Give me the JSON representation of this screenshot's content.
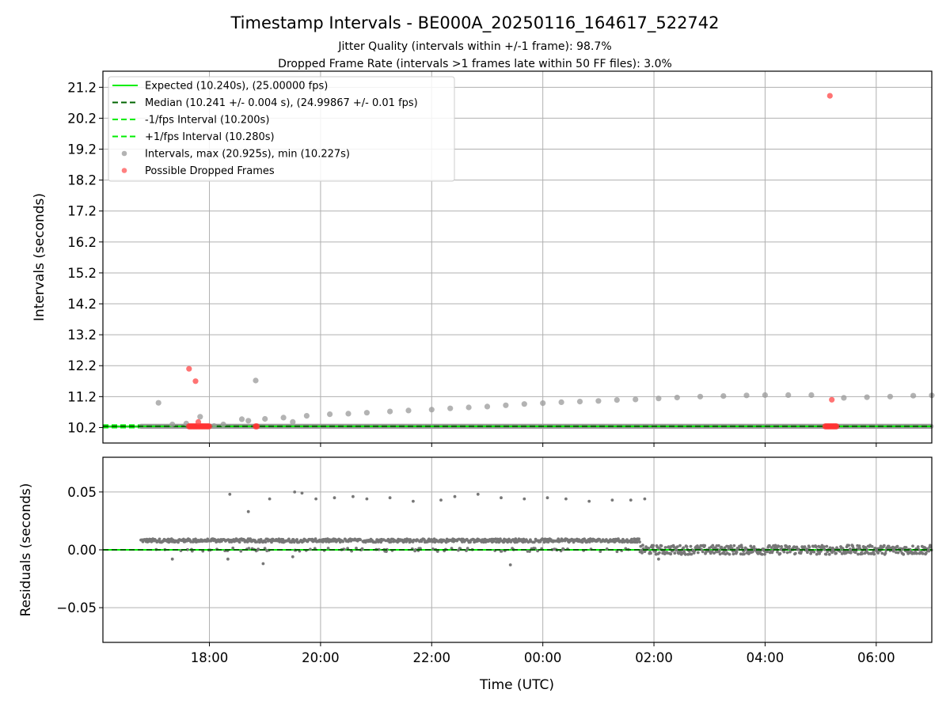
{
  "chart_data": [
    {
      "type": "scatter",
      "panel": "intervals",
      "title": "Timestamp Intervals - BE000A_20250116_164617_522742",
      "subtitle_lines": [
        "Jitter Quality (intervals within +/-1 frame): 98.7%",
        "Dropped Frame Rate (intervals >1 frames late within 50 FF files): 3.0%"
      ],
      "xlabel": "",
      "ylabel": "Intervals (seconds)",
      "xlim": [
        "16:05",
        "07:00"
      ],
      "ylim": [
        9.7,
        21.72
      ],
      "yticks": [
        "10.2",
        "11.2",
        "12.2",
        "13.2",
        "14.2",
        "15.2",
        "16.2",
        "17.2",
        "18.2",
        "19.2",
        "20.2",
        "21.2"
      ],
      "grid": true,
      "legend": {
        "placement": "upper-left",
        "entries": [
          {
            "label": "Expected (10.240s), (25.00000 fps)",
            "style": "solid-line",
            "color": "#00ee00"
          },
          {
            "label": "Median (10.241 +/- 0.004 s), (24.99867 +/- 0.01 fps)",
            "style": "dashed-line",
            "color": "#006400"
          },
          {
            "label": "-1/fps Interval (10.200s)",
            "style": "dashed-line",
            "color": "#00ee00"
          },
          {
            "label": "+1/fps Interval (10.280s)",
            "style": "dashed-line",
            "color": "#00ee00"
          },
          {
            "label": "Intervals, max (20.925s), min (10.227s)",
            "style": "marker",
            "color": "#999999"
          },
          {
            "label": "Possible Dropped Frames",
            "style": "marker",
            "color": "#ff5555"
          }
        ]
      },
      "reference_lines": {
        "expected": 10.24,
        "median": 10.241,
        "minus_one_fps": 10.2,
        "plus_one_fps": 10.28
      },
      "baseline_band": {
        "start": "16:46",
        "end": "07:00",
        "value": 10.24
      },
      "intervals_outliers": [
        {
          "x": "17:05",
          "y": 11.0
        },
        {
          "x": "17:20",
          "y": 10.3
        },
        {
          "x": "17:35",
          "y": 10.33
        },
        {
          "x": "17:50",
          "y": 10.55
        },
        {
          "x": "18:05",
          "y": 10.25
        },
        {
          "x": "18:15",
          "y": 10.3
        },
        {
          "x": "18:35",
          "y": 10.47
        },
        {
          "x": "18:42",
          "y": 10.42
        },
        {
          "x": "18:50",
          "y": 11.72
        },
        {
          "x": "19:00",
          "y": 10.48
        },
        {
          "x": "19:20",
          "y": 10.52
        },
        {
          "x": "19:30",
          "y": 10.38
        },
        {
          "x": "19:45",
          "y": 10.58
        },
        {
          "x": "20:10",
          "y": 10.63
        },
        {
          "x": "20:30",
          "y": 10.65
        },
        {
          "x": "20:50",
          "y": 10.68
        },
        {
          "x": "21:15",
          "y": 10.72
        },
        {
          "x": "21:35",
          "y": 10.75
        },
        {
          "x": "22:00",
          "y": 10.78
        },
        {
          "x": "22:20",
          "y": 10.82
        },
        {
          "x": "22:40",
          "y": 10.85
        },
        {
          "x": "23:00",
          "y": 10.88
        },
        {
          "x": "23:20",
          "y": 10.92
        },
        {
          "x": "23:40",
          "y": 10.96
        },
        {
          "x": "00:00",
          "y": 10.99
        },
        {
          "x": "00:20",
          "y": 11.02
        },
        {
          "x": "00:40",
          "y": 11.04
        },
        {
          "x": "01:00",
          "y": 11.06
        },
        {
          "x": "01:20",
          "y": 11.09
        },
        {
          "x": "01:40",
          "y": 11.11
        },
        {
          "x": "02:05",
          "y": 11.14
        },
        {
          "x": "02:25",
          "y": 11.17
        },
        {
          "x": "02:50",
          "y": 11.2
        },
        {
          "x": "03:15",
          "y": 11.22
        },
        {
          "x": "03:40",
          "y": 11.24
        },
        {
          "x": "04:00",
          "y": 11.25
        },
        {
          "x": "04:25",
          "y": 11.25
        },
        {
          "x": "04:50",
          "y": 11.25
        },
        {
          "x": "05:25",
          "y": 11.16
        },
        {
          "x": "05:50",
          "y": 11.18
        },
        {
          "x": "06:15",
          "y": 11.2
        },
        {
          "x": "06:40",
          "y": 11.23
        },
        {
          "x": "07:00",
          "y": 11.24
        }
      ],
      "dropped_frames": [
        {
          "x": "17:38",
          "y": 12.1
        },
        {
          "x": "17:45",
          "y": 11.7
        },
        {
          "x": "17:48",
          "y": 10.38
        },
        {
          "x": "05:10",
          "y": 20.925
        },
        {
          "x": "05:12",
          "y": 11.1
        }
      ],
      "dropped_frame_clusters": [
        {
          "start": "17:38",
          "end": "18:00",
          "y": 10.24
        },
        {
          "start": "18:50",
          "end": "18:52",
          "y": 10.24
        },
        {
          "start": "05:05",
          "end": "05:18",
          "y": 10.24
        }
      ]
    },
    {
      "type": "scatter",
      "panel": "residuals",
      "xlabel": "Time (UTC)",
      "ylabel": "Residuals (seconds)",
      "xlim": [
        "16:05",
        "07:00"
      ],
      "ylim": [
        -0.08,
        0.08
      ],
      "yticks": [
        "−0.05",
        "0.00",
        "0.05"
      ],
      "xticks": [
        "18:00",
        "20:00",
        "22:00",
        "00:00",
        "02:00",
        "04:00",
        "06:00"
      ],
      "grid": true,
      "median_residual": 0.0,
      "segments": [
        {
          "start": "16:46",
          "end": "01:45",
          "level": 0.008,
          "spread": 0.0015
        },
        {
          "start": "01:45",
          "end": "07:00",
          "level": 0.0,
          "spread": 0.004
        }
      ],
      "high_outliers": [
        {
          "x": "18:22",
          "y": 0.048
        },
        {
          "x": "18:42",
          "y": 0.033
        },
        {
          "x": "19:05",
          "y": 0.044
        },
        {
          "x": "19:32",
          "y": 0.05
        },
        {
          "x": "19:40",
          "y": 0.049
        },
        {
          "x": "19:55",
          "y": 0.044
        },
        {
          "x": "20:15",
          "y": 0.045
        },
        {
          "x": "20:35",
          "y": 0.046
        },
        {
          "x": "20:50",
          "y": 0.044
        },
        {
          "x": "21:15",
          "y": 0.045
        },
        {
          "x": "21:40",
          "y": 0.042
        },
        {
          "x": "22:10",
          "y": 0.043
        },
        {
          "x": "22:25",
          "y": 0.046
        },
        {
          "x": "22:50",
          "y": 0.048
        },
        {
          "x": "23:15",
          "y": 0.045
        },
        {
          "x": "23:40",
          "y": 0.044
        },
        {
          "x": "00:05",
          "y": 0.045
        },
        {
          "x": "00:25",
          "y": 0.044
        },
        {
          "x": "00:50",
          "y": 0.042
        },
        {
          "x": "01:15",
          "y": 0.043
        },
        {
          "x": "01:35",
          "y": 0.043
        },
        {
          "x": "01:50",
          "y": 0.044
        }
      ],
      "low_outliers": [
        {
          "x": "17:20",
          "y": -0.008
        },
        {
          "x": "18:20",
          "y": -0.008
        },
        {
          "x": "18:58",
          "y": -0.012
        },
        {
          "x": "19:30",
          "y": -0.006
        },
        {
          "x": "23:25",
          "y": -0.013
        },
        {
          "x": "02:05",
          "y": -0.008
        }
      ]
    }
  ]
}
